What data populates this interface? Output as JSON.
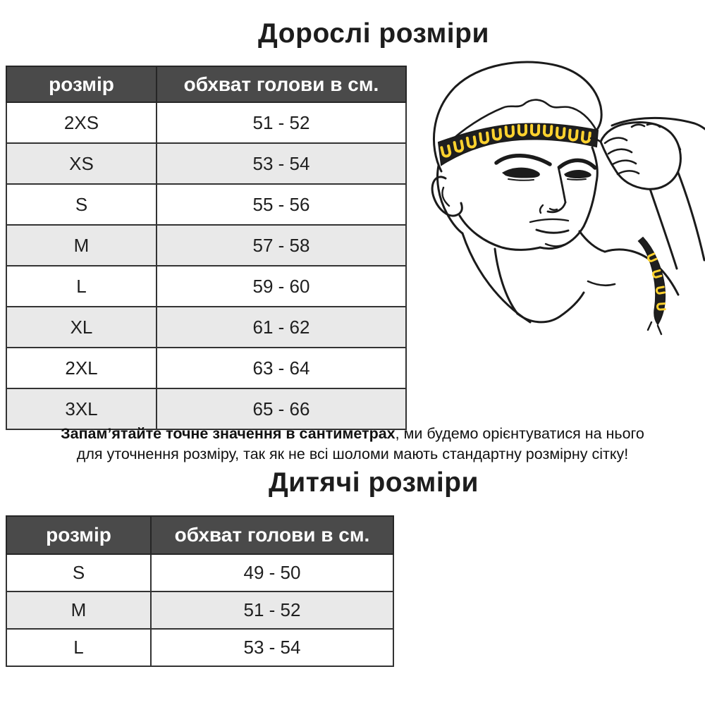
{
  "adult": {
    "title": "Дорослі розміри",
    "table": {
      "headers": [
        "розмір",
        "обхват голови в см."
      ],
      "rows": [
        [
          "2XS",
          "51 - 52"
        ],
        [
          "XS",
          "53 - 54"
        ],
        [
          "S",
          "55 - 56"
        ],
        [
          "M",
          "57 - 58"
        ],
        [
          "L",
          "59 - 60"
        ],
        [
          "XL",
          "61 - 62"
        ],
        [
          "2XL",
          "63 - 64"
        ],
        [
          "3XL",
          "65 - 66"
        ]
      ]
    }
  },
  "note": {
    "line1_bold": "Запам’ятайте точне значення в сантиметрах",
    "line1_rest": ", ми будемо орієнтуватися на нього",
    "line2": "для уточнення розміру, так як не всі шоломи мають стандартну розмірну сітку!"
  },
  "kids": {
    "title": "Дитячі розміри",
    "table": {
      "headers": [
        "розмір",
        "обхват голови в см."
      ],
      "rows": [
        [
          "S",
          "49 - 50"
        ],
        [
          "M",
          "51 - 52"
        ],
        [
          "L",
          "53 - 54"
        ]
      ]
    }
  },
  "illustration": {
    "description": "man measuring head circumference with tape",
    "tape_color": "#ffd22e",
    "tape_band_color": "#1f1f1f",
    "line_color": "#1b1b1b"
  },
  "colors": {
    "header_bg": "#4a4a4a",
    "header_text": "#ffffff",
    "row_alt": "#e9e9e9",
    "border": "#333333",
    "text": "#1d1d1d"
  }
}
